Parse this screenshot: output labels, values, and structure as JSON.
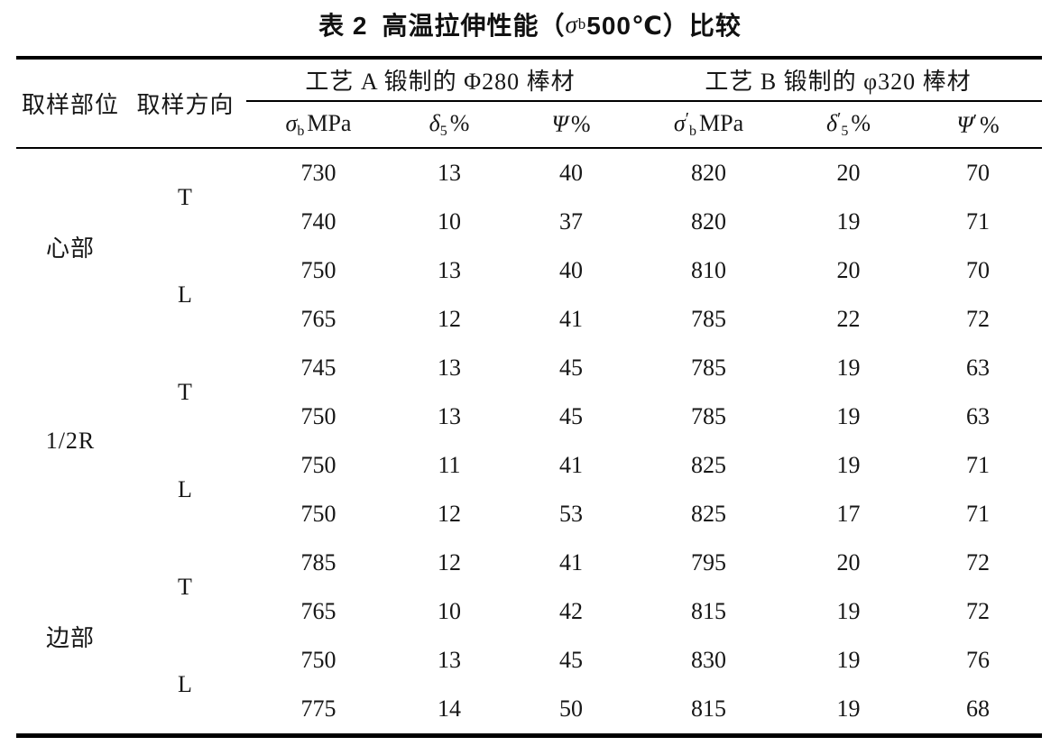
{
  "title": {
    "label": "表 2",
    "pre": "高温拉伸性能（",
    "sigma": "σ",
    "sigma_sub": "b",
    "post": "500℃）比较"
  },
  "table": {
    "row_headers": {
      "location": "取样部位",
      "direction": "取样方向"
    },
    "groups": [
      {
        "label": "工艺 A 锻制的 Φ280 棒材",
        "subcols": [
          {
            "sym": "σ",
            "prime": "",
            "sub": "b",
            "unit": "MPa"
          },
          {
            "sym": "δ",
            "prime": "",
            "sub": "5",
            "unit": "%"
          },
          {
            "sym": "Ψ",
            "prime": "",
            "sub": "",
            "unit": "%"
          }
        ]
      },
      {
        "label": "工艺 B 锻制的 φ320 棒材",
        "subcols": [
          {
            "sym": "σ",
            "prime": "′",
            "sub": "b",
            "unit": "MPa"
          },
          {
            "sym": "δ",
            "prime": "′",
            "sub": "5",
            "unit": "%"
          },
          {
            "sym": "Ψ",
            "prime": "′",
            "sub": "",
            "unit": "%"
          }
        ]
      }
    ],
    "sections": [
      {
        "location": "心部",
        "directions": [
          {
            "dir": "T",
            "rows": [
              [
                730,
                13,
                40,
                820,
                20,
                70
              ],
              [
                740,
                10,
                37,
                820,
                19,
                71
              ]
            ]
          },
          {
            "dir": "L",
            "rows": [
              [
                750,
                13,
                40,
                810,
                20,
                70
              ],
              [
                765,
                12,
                41,
                785,
                22,
                72
              ]
            ]
          }
        ]
      },
      {
        "location": "1/2R",
        "directions": [
          {
            "dir": "T",
            "rows": [
              [
                745,
                13,
                45,
                785,
                19,
                63
              ],
              [
                750,
                13,
                45,
                785,
                19,
                63
              ]
            ]
          },
          {
            "dir": "L",
            "rows": [
              [
                750,
                11,
                41,
                825,
                19,
                71
              ],
              [
                750,
                12,
                53,
                825,
                17,
                71
              ]
            ]
          }
        ]
      },
      {
        "location": "边部",
        "directions": [
          {
            "dir": "T",
            "rows": [
              [
                785,
                12,
                41,
                795,
                20,
                72
              ],
              [
                765,
                10,
                42,
                815,
                19,
                72
              ]
            ]
          },
          {
            "dir": "L",
            "rows": [
              [
                750,
                13,
                45,
                830,
                19,
                76
              ],
              [
                775,
                14,
                50,
                815,
                19,
                68
              ]
            ]
          }
        ]
      }
    ]
  }
}
